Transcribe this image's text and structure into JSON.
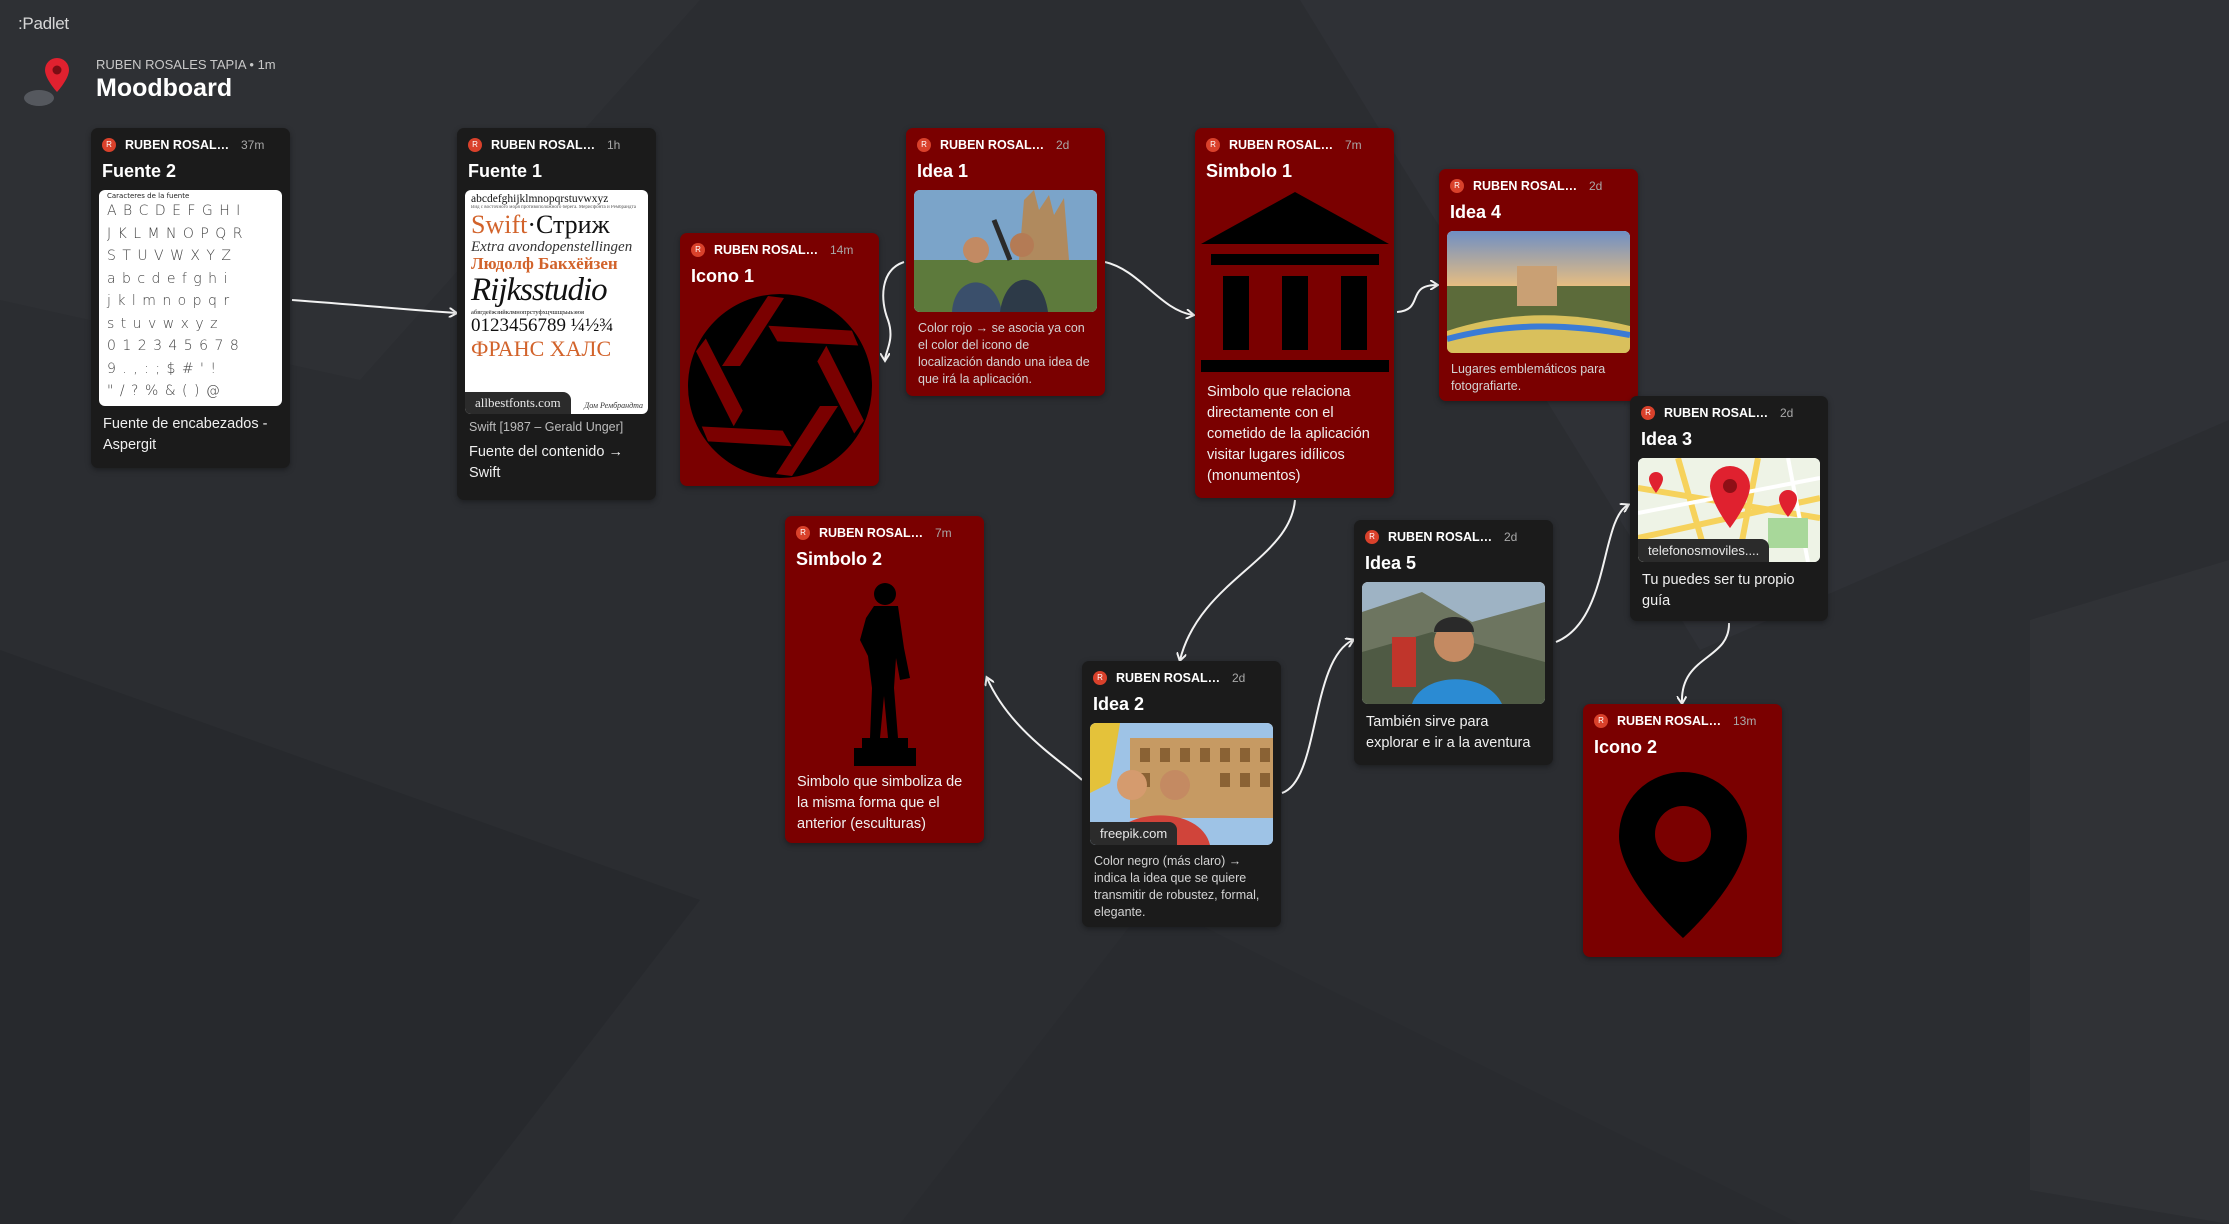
{
  "app": {
    "logo": ":Padlet"
  },
  "header": {
    "author": "RUBEN ROSALES TAPIA  • 1m",
    "title": "Moodboard"
  },
  "colors": {
    "background": "#2b2d31",
    "card_dark": "#1b1b1b",
    "card_red": "#7a0000",
    "avatar": "#d9412b",
    "pin": "#e0212f"
  },
  "cards": {
    "fuente2": {
      "author": "RUBEN ROSALE...",
      "time": "37m",
      "title": "Fuente 2",
      "caption": "Fuente de encabezados - Aspergit",
      "sheet_title": "Caracteres de la fuente",
      "glyph_rows": [
        "A B C D E F G H I",
        "J K L M N O P Q R",
        "S T U V W X Y Z",
        "a b c d e f g h i",
        "j k l m n o p q r",
        "s t u v w x y z",
        "0 1 2 3 4 5 6 7 8",
        "9 . , : ; $ # ' !",
        "\" / ? % & ( ) @"
      ]
    },
    "fuente1": {
      "author": "RUBEN ROSALES T...",
      "time": "1h",
      "title": "Fuente 1",
      "tag": "allbestfonts.com",
      "source": "Swift [1987 – Gerald Unger]",
      "caption": "Fuente del contenido → Swift",
      "specimen": {
        "l1": "abcdefghijklmnopqrstuvwxyz",
        "l2": "Вид с восточного моря противоположного берега. Мерисфонта и Рембрандта",
        "l3a": "Swift",
        "l3b": "·Стриж",
        "l4": "Extra avondopenstellingen",
        "l5": "Людолф Бакхёйзен",
        "l6": "Rijksstudio",
        "l7": "абвгдеёжзийклмнопрстуфхцчшщъыьэюя",
        "l8": "0123456789 ¼½¾",
        "l9": "ФРАНС ХАЛС",
        "l10": "Дом Рембрандта"
      }
    },
    "icono1": {
      "author": "RUBEN ROSALE...",
      "time": "14m",
      "title": "Icono 1",
      "icon": "camera-aperture-icon"
    },
    "idea1": {
      "author": "RUBEN ROSALES ...",
      "time": "2d",
      "title": "Idea 1",
      "caption": "Color rojo → se asocia ya con el color del icono de localización dando una idea de que irá la aplicación.",
      "image": "tourists-selfie-sagrada-familia"
    },
    "simbolo1": {
      "author": "RUBEN ROSALES ...",
      "time": "7m",
      "title": "Simbolo 1",
      "icon": "monument-building-icon",
      "caption": "Simbolo que relaciona directamente con el cometido de la aplicación visitar lugares idílicos (monumentos)"
    },
    "idea4": {
      "author": "RUBEN ROSALES ...",
      "time": "2d",
      "title": "Idea 4",
      "caption": "Lugares emblemáticos para fotografiarte.",
      "image": "park-guell-sunset"
    },
    "idea3": {
      "author": "RUBEN ROSALES ...",
      "time": "2d",
      "title": "Idea 3",
      "tag": "telefonosmoviles....",
      "caption": "Tu puedes ser tu propio guía",
      "image": "map-with-pins"
    },
    "simbolo2": {
      "author": "RUBEN ROSALES ...",
      "time": "7m",
      "title": "Simbolo 2",
      "icon": "statue-silhouette-icon",
      "caption": "Simbolo que simboliza de la misma forma que el anterior (esculturas)"
    },
    "idea5": {
      "author": "RUBEN ROSALES ...",
      "time": "2d",
      "title": "Idea 5",
      "caption": "También sirve para explorar e ir a la aventura",
      "image": "hiker-selfie-cliffs"
    },
    "idea2": {
      "author": "RUBEN ROSALES ...",
      "time": "2d",
      "title": "Idea 2",
      "tag": "freepik.com",
      "caption": "Color negro (más claro) → indica la idea que se quiere transmitir de robustez, formal, elegante.",
      "image": "couple-selfie-colosseum"
    },
    "icono2": {
      "author": "RUBEN ROSALE...",
      "time": "13m",
      "title": "Icono 2",
      "icon": "location-pin-icon"
    }
  }
}
